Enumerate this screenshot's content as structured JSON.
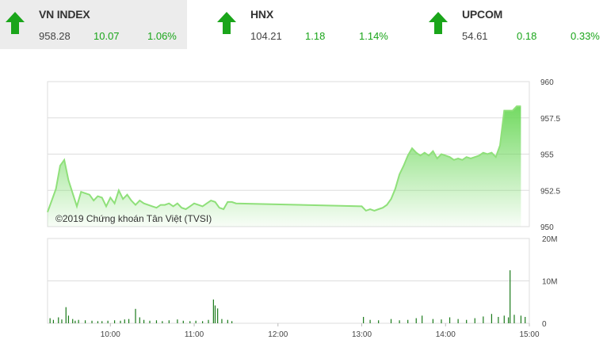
{
  "indices": [
    {
      "name": "VN INDEX",
      "value": "958.28",
      "change": "10.07",
      "percent": "1.06%"
    },
    {
      "name": "HNX",
      "value": "104.21",
      "change": "1.18",
      "percent": "1.14%"
    },
    {
      "name": "UPCOM",
      "value": "54.61",
      "change": "0.18",
      "percent": "0.33%"
    }
  ],
  "colors": {
    "up": "#1aa51a",
    "line": "#8fe07a",
    "volume": "#1a7a1a",
    "grid": "#dddddd",
    "active_tile": "#ececec"
  },
  "icons": {
    "up_arrow": "arrow-up-icon"
  },
  "watermark": "©2019 Chứng khoán Tân Việt (TVSI)",
  "chart_data": [
    {
      "type": "area",
      "x_ticks": [
        "10:00",
        "11:00",
        "12:00",
        "13:00",
        "14:00",
        "15:00"
      ],
      "y_ticks": [
        "960",
        "957.5",
        "955",
        "952.5",
        "950"
      ],
      "ylim": [
        950,
        960
      ],
      "x_range_hours": [
        9.25,
        15.0
      ],
      "x": [
        9.25,
        9.3,
        9.35,
        9.4,
        9.45,
        9.5,
        9.55,
        9.6,
        9.65,
        9.7,
        9.75,
        9.8,
        9.85,
        9.9,
        9.95,
        10.0,
        10.05,
        10.1,
        10.15,
        10.2,
        10.25,
        10.3,
        10.35,
        10.4,
        10.45,
        10.5,
        10.55,
        10.6,
        10.65,
        10.7,
        10.75,
        10.8,
        10.85,
        10.9,
        10.95,
        11.0,
        11.05,
        11.1,
        11.15,
        11.2,
        11.25,
        11.3,
        11.35,
        11.4,
        11.45,
        11.5,
        13.0,
        13.05,
        13.1,
        13.15,
        13.2,
        13.25,
        13.3,
        13.35,
        13.4,
        13.45,
        13.5,
        13.55,
        13.6,
        13.65,
        13.7,
        13.75,
        13.8,
        13.85,
        13.9,
        13.95,
        14.0,
        14.05,
        14.1,
        14.15,
        14.2,
        14.25,
        14.3,
        14.35,
        14.4,
        14.45,
        14.5,
        14.55,
        14.6,
        14.65,
        14.7,
        14.75,
        14.8,
        14.85,
        14.9
      ],
      "y": [
        951.0,
        951.8,
        952.6,
        954.2,
        954.6,
        953.2,
        952.3,
        951.4,
        952.4,
        952.3,
        952.2,
        951.8,
        952.1,
        952.0,
        951.4,
        952.0,
        951.6,
        952.5,
        951.9,
        952.2,
        951.8,
        951.5,
        951.8,
        951.6,
        951.5,
        951.4,
        951.3,
        951.5,
        951.5,
        951.6,
        951.4,
        951.6,
        951.3,
        951.2,
        951.4,
        951.6,
        951.5,
        951.4,
        951.6,
        951.8,
        951.7,
        951.3,
        951.2,
        951.7,
        951.7,
        951.6,
        951.4,
        951.1,
        951.2,
        951.1,
        951.2,
        951.3,
        951.5,
        951.9,
        952.6,
        953.6,
        954.2,
        954.9,
        955.4,
        955.1,
        954.9,
        955.1,
        954.9,
        955.2,
        954.7,
        955.0,
        954.9,
        954.8,
        954.6,
        954.7,
        954.6,
        954.8,
        954.7,
        954.8,
        954.9,
        955.1,
        955.0,
        955.1,
        954.8,
        955.6,
        958.0,
        958.0,
        958.0,
        958.3,
        958.3
      ]
    },
    {
      "type": "bar",
      "y_ticks": [
        "20M",
        "10M",
        "0"
      ],
      "ylim": [
        0,
        20
      ],
      "volume_x": [
        9.28,
        9.32,
        9.38,
        9.42,
        9.47,
        9.5,
        9.55,
        9.58,
        9.62,
        9.7,
        9.78,
        9.85,
        9.9,
        9.97,
        10.05,
        10.12,
        10.17,
        10.22,
        10.3,
        10.35,
        10.4,
        10.47,
        10.55,
        10.62,
        10.7,
        10.8,
        10.87,
        10.95,
        11.02,
        11.1,
        11.17,
        11.23,
        11.25,
        11.28,
        11.33,
        11.4,
        11.45,
        13.02,
        13.1,
        13.2,
        13.35,
        13.45,
        13.55,
        13.65,
        13.72,
        13.85,
        13.95,
        14.05,
        14.15,
        14.25,
        14.35,
        14.45,
        14.55,
        14.63,
        14.7,
        14.75,
        14.77,
        14.82,
        14.9,
        14.95
      ],
      "volume_y": [
        1.2,
        0.8,
        1.4,
        0.9,
        3.8,
        1.8,
        1.0,
        0.6,
        0.8,
        0.7,
        0.6,
        0.5,
        0.5,
        0.6,
        0.7,
        0.6,
        0.9,
        1.0,
        3.4,
        1.4,
        0.8,
        0.6,
        0.7,
        0.5,
        0.7,
        0.9,
        0.6,
        0.5,
        0.6,
        0.5,
        0.8,
        5.6,
        4.2,
        3.5,
        1.0,
        0.8,
        0.5,
        1.5,
        0.8,
        0.7,
        1.0,
        0.7,
        0.8,
        1.2,
        1.8,
        1.0,
        0.9,
        1.4,
        1.0,
        0.8,
        1.2,
        1.6,
        2.2,
        1.5,
        1.8,
        1.4,
        12.5,
        2.0,
        1.8,
        1.5
      ]
    }
  ]
}
